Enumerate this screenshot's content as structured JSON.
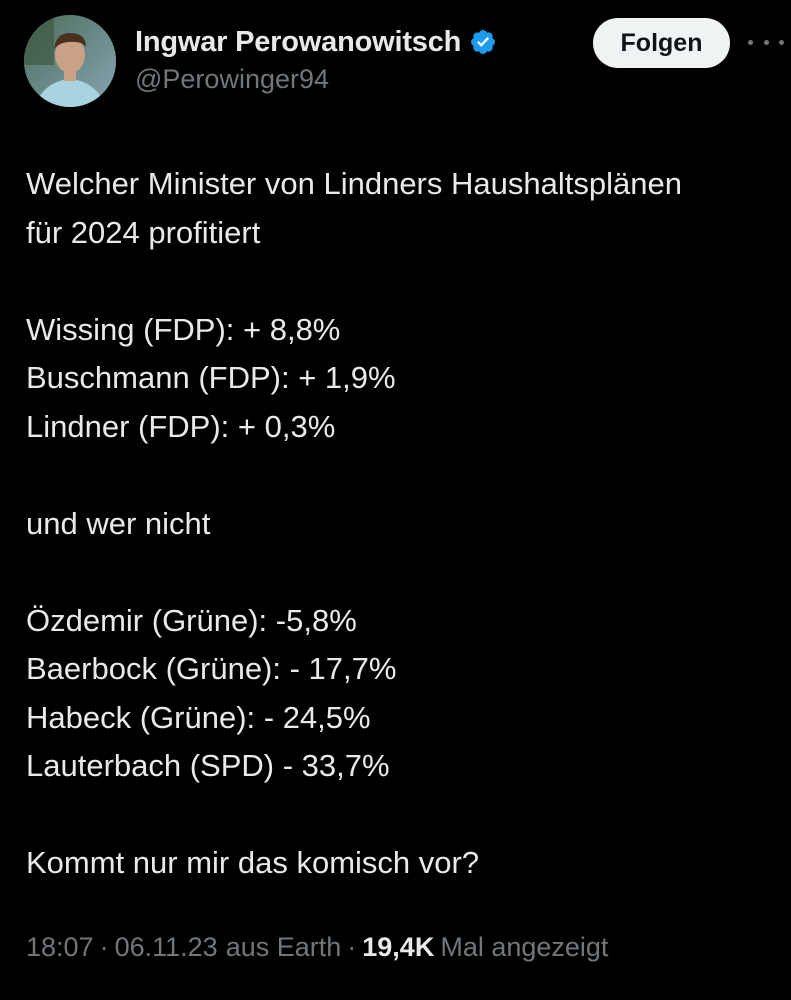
{
  "author": {
    "display_name": "Ingwar Perowanowitsch",
    "handle": "@Perowinger94",
    "verified": true,
    "verified_color": "#1d9bf0"
  },
  "actions": {
    "follow_label": "Folgen",
    "more_icon": "more-horizontal-icon"
  },
  "tweet": {
    "lines": [
      "Welcher Minister von Lindners Haushaltsplänen",
      "für 2024 profitiert",
      "",
      "Wissing (FDP): + 8,8%",
      "Buschmann (FDP): + 1,9%",
      "Lindner (FDP): + 0,3%",
      "",
      "und wer nicht",
      "",
      "Özdemir (Grüne): -5,8%",
      "Baerbock (Grüne): - 17,7%",
      "Habeck (Grüne): - 24,5%",
      "Lauterbach (SPD) - 33,7%",
      "",
      "Kommt nur mir das komisch vor?"
    ]
  },
  "meta": {
    "time": "18:07",
    "date": "06.11.23",
    "location": "aus Earth",
    "separator": "·",
    "views_count": "19,4K",
    "views_label": "Mal angezeigt"
  },
  "colors": {
    "background": "#000000",
    "text_primary": "#e7e9ea",
    "text_secondary": "#71767b",
    "button_bg": "#eff3f4",
    "button_text": "#0f1419"
  }
}
